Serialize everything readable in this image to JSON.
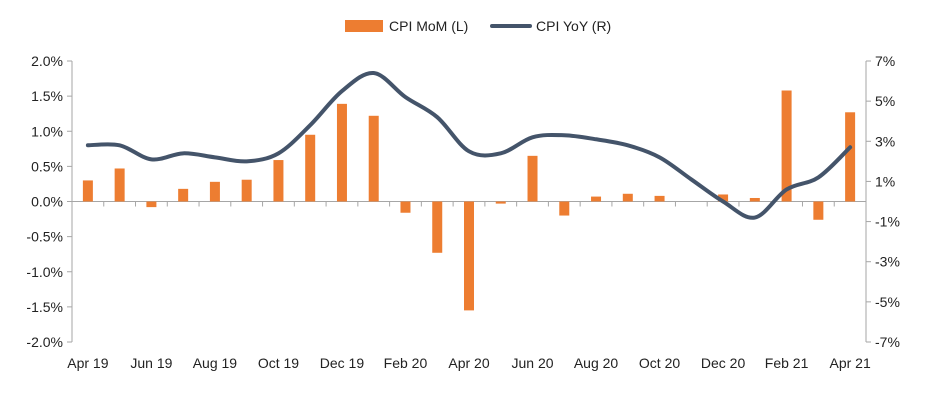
{
  "chart_data": {
    "type": "bar+line",
    "categories": [
      "Apr 19",
      "May 19",
      "Jun 19",
      "Jul 19",
      "Aug 19",
      "Sep 19",
      "Oct 19",
      "Nov 19",
      "Dec 19",
      "Jan 20",
      "Feb 20",
      "Mar 20",
      "Apr 20",
      "May 20",
      "Jun 20",
      "Jul 20",
      "Aug 20",
      "Sep 20",
      "Oct 20",
      "Nov 20",
      "Dec 20",
      "Jan 21",
      "Feb 21",
      "Mar 21",
      "Apr 21"
    ],
    "x_tick_labels": [
      "Apr 19",
      "Jun 19",
      "Aug 19",
      "Oct 19",
      "Dec 19",
      "Feb 20",
      "Apr 20",
      "Jun 20",
      "Aug 20",
      "Oct 20",
      "Dec 20",
      "Feb 21",
      "Apr 21"
    ],
    "series": [
      {
        "name": "CPI MoM (L)",
        "type": "bar",
        "axis": "left",
        "color": "#ED7D31",
        "values": [
          0.3,
          0.47,
          -0.08,
          0.18,
          0.28,
          0.31,
          0.59,
          0.95,
          1.39,
          1.22,
          -0.16,
          -0.73,
          -1.55,
          -0.03,
          0.65,
          -0.2,
          0.07,
          0.11,
          0.08,
          0.0,
          0.1,
          0.05,
          1.58,
          -0.26,
          1.27
        ]
      },
      {
        "name": "CPI YoY (R)",
        "type": "line",
        "axis": "right",
        "color": "#44546A",
        "values": [
          2.8,
          2.8,
          2.1,
          2.4,
          2.2,
          2.0,
          2.4,
          3.8,
          5.5,
          6.4,
          5.2,
          4.2,
          2.5,
          2.4,
          3.2,
          3.3,
          3.1,
          2.8,
          2.2,
          1.1,
          0.0,
          -0.8,
          0.6,
          1.2,
          2.7
        ]
      }
    ],
    "y_left": {
      "min": -2.0,
      "max": 2.0,
      "ticks": [
        "2.0%",
        "1.5%",
        "1.0%",
        "0.5%",
        "0.0%",
        "-0.5%",
        "-1.0%",
        "-1.5%",
        "-2.0%"
      ]
    },
    "y_right": {
      "min": -7,
      "max": 7,
      "ticks": [
        "7%",
        "5%",
        "3%",
        "1%",
        "-1%",
        "-3%",
        "-5%",
        "-7%"
      ]
    },
    "legend": {
      "position": "top-center",
      "items": [
        "CPI MoM (L)",
        "CPI YoY (R)"
      ]
    },
    "grid": false
  }
}
